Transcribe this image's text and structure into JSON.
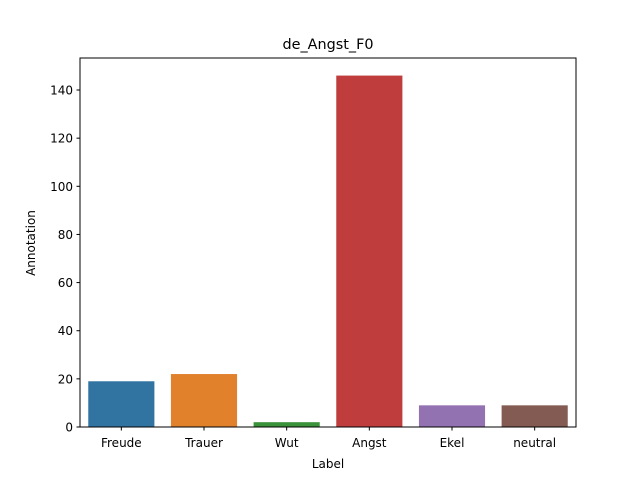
{
  "chart_data": {
    "type": "bar",
    "title": "de_Angst_F0",
    "xlabel": "Label",
    "ylabel": "Annotation",
    "categories": [
      "Freude",
      "Trauer",
      "Wut",
      "Angst",
      "Ekel",
      "neutral"
    ],
    "values": [
      19,
      22,
      2,
      146,
      9,
      9
    ],
    "colors": [
      "#3274a1",
      "#e1812c",
      "#3a923a",
      "#c03d3e",
      "#9372b2",
      "#845b53"
    ],
    "ylim": [
      0,
      153.3
    ],
    "yticks": [
      0,
      20,
      40,
      60,
      80,
      100,
      120,
      140
    ],
    "grid": false,
    "legend": "none"
  }
}
